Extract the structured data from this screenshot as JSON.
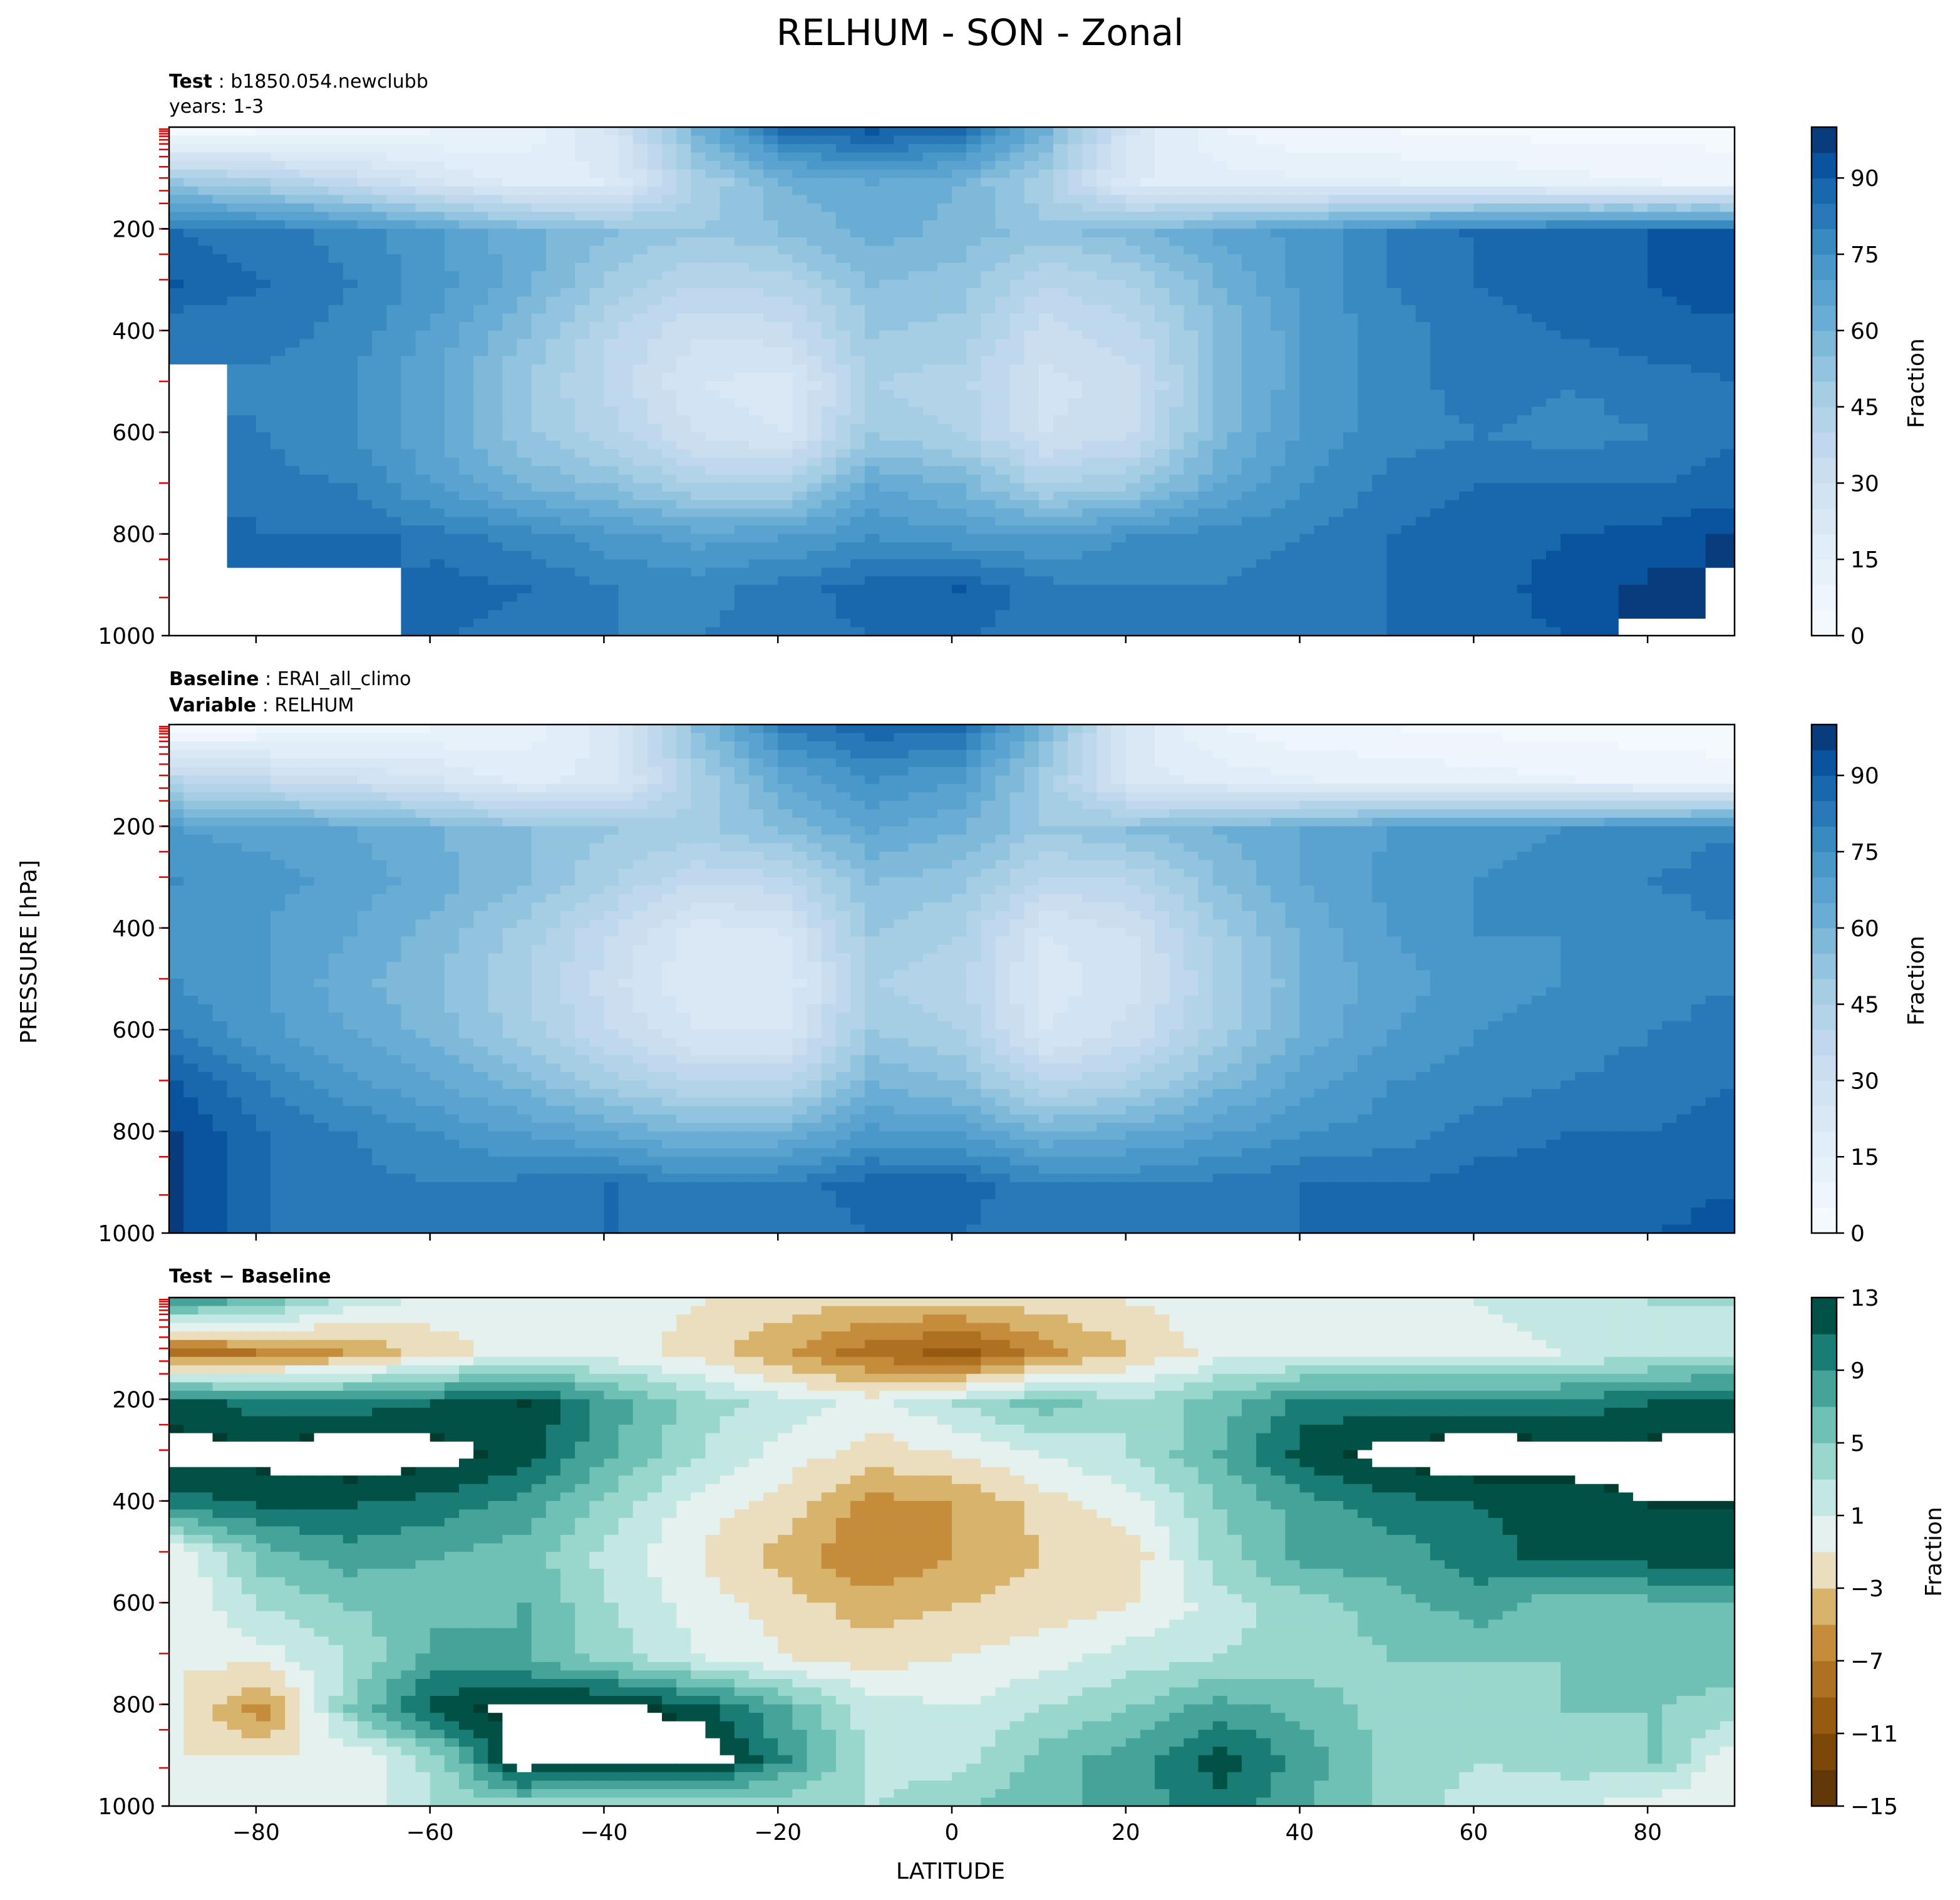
{
  "figure": {
    "title": "RELHUM - SON - Zonal",
    "ylabel": "PRESSURE [hPa]",
    "xlabel": "LATITUDE"
  },
  "chart_data": [
    {
      "type": "heatmap",
      "panel": "test",
      "header": [
        {
          "bold": "Test",
          "text": " : b1850.054.newclubb"
        },
        {
          "bold": "",
          "text": "years: 1-3"
        }
      ],
      "xlim": [
        -90,
        90
      ],
      "ylim": [
        1000,
        0
      ],
      "x_ticks": [
        -80,
        -60,
        -40,
        -20,
        0,
        20,
        40,
        60,
        80
      ],
      "x_tick_labels_shown": false,
      "y_ticks": [
        200,
        400,
        600,
        800,
        1000
      ],
      "cmap": "Blues",
      "colorbar": {
        "label": "Fraction",
        "min": 0,
        "max": 100,
        "ticks": [
          0,
          15,
          30,
          45,
          60,
          75,
          90
        ]
      },
      "field": [
        [
          3,
          5,
          8,
          10,
          12,
          25,
          60,
          85,
          90,
          85,
          60,
          25,
          10,
          6,
          5,
          4,
          3,
          3,
          3
        ],
        [
          50,
          45,
          35,
          25,
          18,
          20,
          45,
          60,
          65,
          60,
          45,
          20,
          18,
          16,
          15,
          14,
          12,
          10,
          8
        ],
        [
          85,
          82,
          78,
          70,
          62,
          55,
          50,
          55,
          62,
          58,
          52,
          58,
          66,
          72,
          80,
          86,
          88,
          90,
          92
        ],
        [
          90,
          85,
          80,
          72,
          62,
          48,
          40,
          42,
          55,
          52,
          40,
          45,
          60,
          72,
          80,
          85,
          88,
          90,
          94
        ],
        [
          80,
          82,
          78,
          68,
          55,
          40,
          30,
          32,
          50,
          48,
          32,
          38,
          55,
          70,
          78,
          82,
          85,
          88,
          88
        ],
        [
          -1,
          78,
          75,
          65,
          50,
          38,
          25,
          22,
          45,
          42,
          28,
          32,
          55,
          70,
          78,
          82,
          80,
          82,
          85
        ],
        [
          -1,
          80,
          75,
          65,
          52,
          42,
          30,
          25,
          50,
          45,
          30,
          35,
          58,
          72,
          78,
          80,
          78,
          80,
          85
        ],
        [
          -1,
          82,
          80,
          70,
          60,
          55,
          45,
          45,
          65,
          60,
          45,
          50,
          65,
          75,
          82,
          85,
          85,
          85,
          88
        ],
        [
          -1,
          85,
          85,
          82,
          78,
          72,
          68,
          70,
          75,
          72,
          70,
          75,
          78,
          80,
          85,
          88,
          90,
          92,
          95
        ],
        [
          -1,
          -1,
          -1,
          88,
          85,
          80,
          78,
          82,
          88,
          90,
          82,
          80,
          80,
          82,
          85,
          88,
          92,
          95,
          -1
        ],
        [
          -1,
          -1,
          -1,
          85,
          82,
          80,
          80,
          82,
          85,
          85,
          82,
          80,
          80,
          82,
          85,
          88,
          90,
          -1,
          -1
        ]
      ]
    },
    {
      "type": "heatmap",
      "panel": "baseline",
      "header": [
        {
          "bold": "Baseline",
          "text": " : ERAI_all_climo"
        },
        {
          "bold": "Variable",
          "text": " : RELHUM"
        }
      ],
      "xlim": [
        -90,
        90
      ],
      "ylim": [
        1000,
        0
      ],
      "x_ticks": [
        -80,
        -60,
        -40,
        -20,
        0,
        20,
        40,
        60,
        80
      ],
      "x_tick_labels_shown": false,
      "y_ticks": [
        200,
        400,
        600,
        800,
        1000
      ],
      "cmap": "Blues",
      "colorbar": {
        "label": "Fraction",
        "min": 0,
        "max": 100,
        "ticks": [
          0,
          15,
          30,
          45,
          60,
          75,
          90
        ]
      },
      "field": [
        [
          3,
          5,
          8,
          10,
          12,
          22,
          55,
          80,
          88,
          85,
          58,
          22,
          10,
          6,
          5,
          4,
          3,
          3,
          3
        ],
        [
          40,
          35,
          30,
          25,
          18,
          22,
          45,
          65,
          75,
          70,
          48,
          22,
          18,
          15,
          14,
          12,
          10,
          8,
          6
        ],
        [
          70,
          68,
          65,
          60,
          55,
          50,
          48,
          55,
          65,
          60,
          50,
          55,
          60,
          65,
          70,
          72,
          75,
          78,
          80
        ],
        [
          75,
          72,
          68,
          62,
          55,
          45,
          35,
          38,
          55,
          52,
          38,
          40,
          55,
          65,
          72,
          75,
          78,
          80,
          82
        ],
        [
          72,
          70,
          65,
          58,
          48,
          35,
          22,
          25,
          50,
          45,
          25,
          30,
          48,
          62,
          70,
          75,
          75,
          78,
          80
        ],
        [
          75,
          70,
          62,
          55,
          45,
          32,
          20,
          20,
          45,
          42,
          22,
          28,
          45,
          60,
          68,
          72,
          75,
          78,
          80
        ],
        [
          80,
          72,
          65,
          58,
          48,
          35,
          25,
          25,
          50,
          45,
          25,
          32,
          48,
          62,
          70,
          75,
          78,
          80,
          82
        ],
        [
          90,
          80,
          72,
          65,
          58,
          48,
          40,
          40,
          60,
          55,
          40,
          45,
          58,
          68,
          75,
          78,
          80,
          82,
          85
        ],
        [
          95,
          85,
          80,
          75,
          70,
          65,
          60,
          62,
          72,
          70,
          62,
          65,
          70,
          75,
          78,
          82,
          85,
          85,
          88
        ],
        [
          95,
          85,
          82,
          80,
          82,
          85,
          80,
          82,
          88,
          88,
          80,
          80,
          82,
          85,
          85,
          88,
          88,
          88,
          90
        ],
        [
          95,
          85,
          82,
          80,
          85,
          85,
          80,
          80,
          85,
          85,
          80,
          80,
          82,
          85,
          85,
          88,
          88,
          90,
          92
        ]
      ]
    },
    {
      "type": "heatmap",
      "panel": "difference",
      "header": [
        {
          "bold": "Test − Baseline",
          "text": ""
        }
      ],
      "xlim": [
        -90,
        90
      ],
      "ylim": [
        1000,
        0
      ],
      "x_ticks": [
        -80,
        -60,
        -40,
        -20,
        0,
        20,
        40,
        60,
        80
      ],
      "x_tick_labels_shown": true,
      "y_ticks": [
        200,
        400,
        600,
        800,
        1000
      ],
      "cmap": "BrBG",
      "colorbar": {
        "label": "Fraction",
        "min": -15,
        "max": 13,
        "ticks": [
          -15,
          -11,
          -7,
          -3,
          1,
          5,
          9,
          13
        ]
      },
      "field": [
        [
          8,
          6,
          2,
          0,
          0,
          0,
          -1,
          -2,
          -3,
          -3,
          -2,
          -1,
          0,
          0,
          0,
          1,
          2,
          3,
          3
        ],
        [
          -8,
          -7,
          -5,
          -2,
          0,
          0,
          -2,
          -5,
          -8,
          -10,
          -6,
          -3,
          0,
          0,
          0,
          0,
          1,
          2,
          3
        ],
        [
          12,
          10,
          10,
          11,
          13,
          8,
          4,
          2,
          0,
          3,
          6,
          3,
          6,
          10,
          10,
          10,
          10,
          11,
          12
        ],
        [
          14,
          14,
          15,
          14,
          12,
          7,
          3,
          0,
          -2,
          -1,
          1,
          3,
          7,
          12,
          14,
          15,
          14,
          14,
          14
        ],
        [
          10,
          11,
          11,
          10,
          8,
          4,
          0,
          -2,
          -6,
          -5,
          -2,
          0,
          5,
          8,
          10,
          11,
          12,
          13,
          13
        ],
        [
          -1,
          6,
          8,
          7,
          6,
          2,
          -1,
          -4,
          -7,
          -5,
          -3,
          -2,
          4,
          8,
          8,
          10,
          12,
          12,
          12
        ],
        [
          -1,
          3,
          5,
          6,
          7,
          3,
          0,
          -2,
          -4,
          -3,
          -2,
          -1,
          2,
          4,
          6,
          8,
          5,
          6,
          7
        ],
        [
          -1,
          0,
          3,
          8,
          7,
          4,
          1,
          -1,
          -2,
          -1,
          0,
          2,
          3,
          4,
          5,
          5,
          5,
          6,
          6
        ],
        [
          -1,
          -6,
          5,
          12,
          14,
          14,
          12,
          7,
          2,
          1,
          3,
          5,
          8,
          6,
          4,
          4,
          5,
          5,
          4
        ],
        [
          -1,
          -1,
          -1,
          4,
          15,
          14,
          15,
          9,
          2,
          2,
          6,
          8,
          12,
          8,
          4,
          3,
          4,
          5,
          -1
        ],
        [
          -1,
          -1,
          -1,
          3,
          3,
          2,
          2,
          3,
          3,
          5,
          6,
          8,
          10,
          7,
          4,
          2,
          1,
          -1,
          -1
        ]
      ]
    }
  ]
}
